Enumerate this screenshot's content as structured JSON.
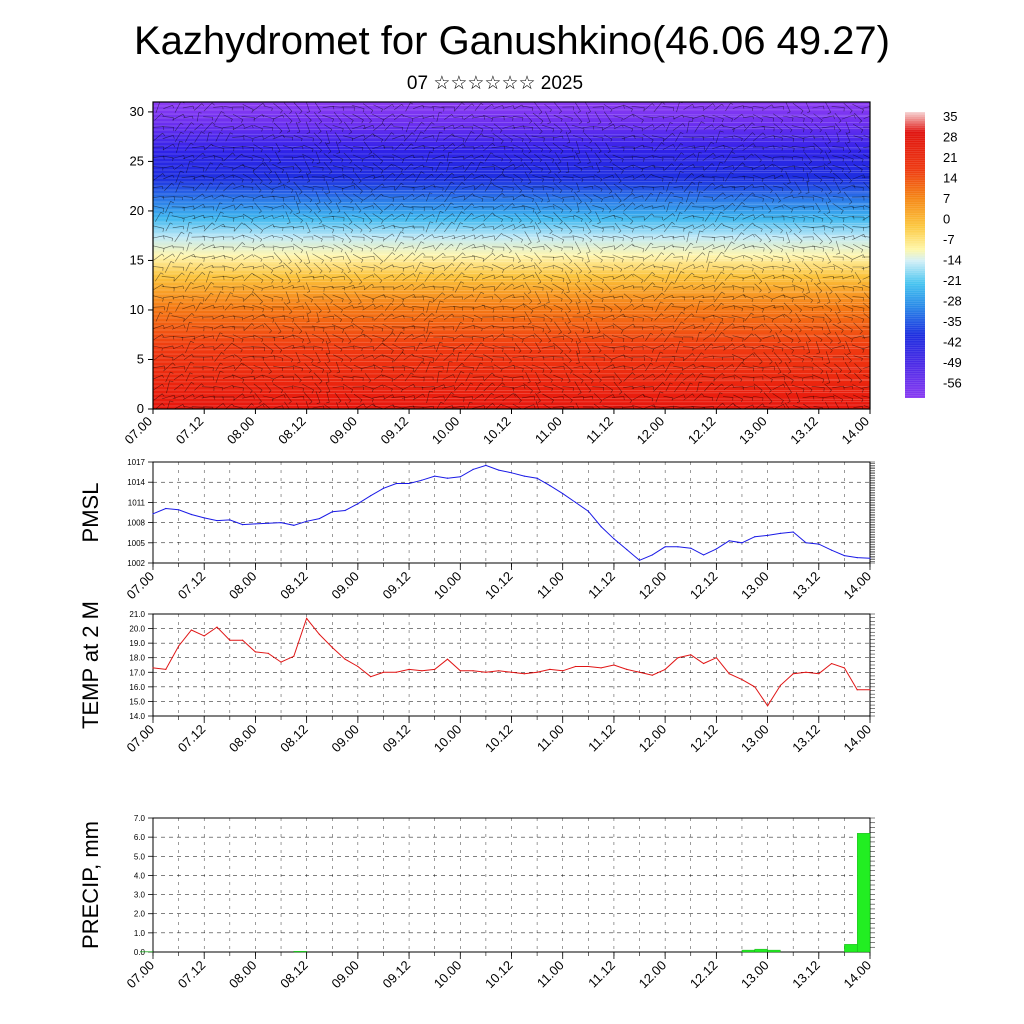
{
  "header": {
    "title": "Kazhydromet for Ganushkino(46.06 49.27)",
    "subtitle": "07 ☆☆☆☆☆☆ 2025"
  },
  "chart_data": [
    {
      "id": "cross-section",
      "type": "heatmap",
      "yticks": [
        "0",
        "5",
        "10",
        "15",
        "20",
        "25",
        "30"
      ],
      "ylim": [
        0,
        31
      ],
      "xticks": [
        "07.00",
        "07.12",
        "08.00",
        "08.12",
        "09.00",
        "09.12",
        "10.00",
        "10.12",
        "11.00",
        "11.12",
        "12.00",
        "12.12",
        "13.00",
        "13.12",
        "14.00"
      ],
      "colorbar_labels": [
        "35",
        "28",
        "21",
        "14",
        "7",
        "0",
        "-7",
        "-14",
        "-21",
        "-28",
        "-35",
        "-42",
        "-49",
        "-56"
      ],
      "colors": {
        "warm": "#e8220f",
        "orange": "#f58a12",
        "yellow": "#fff4a0",
        "cyan": "#49c8f0",
        "blue": "#2020e0",
        "violet": "#7b32ee"
      }
    },
    {
      "id": "pmsl",
      "type": "line",
      "ylabel": "PMSL",
      "ylim": [
        1002,
        1017
      ],
      "yticks": [
        "1017",
        "1014",
        "1011",
        "1008",
        "1005",
        "1002"
      ],
      "xticks": [
        "07.00",
        "07.12",
        "08.00",
        "08.12",
        "09.00",
        "09.12",
        "10.00",
        "10.12",
        "11.00",
        "11.12",
        "12.00",
        "12.12",
        "13.00",
        "13.12",
        "14.00"
      ],
      "x_hours": [
        0,
        3,
        6,
        9,
        12,
        15,
        18,
        21,
        24,
        27,
        30,
        33,
        36,
        39,
        42,
        45,
        48,
        51,
        54,
        57,
        60,
        63,
        66,
        69,
        72,
        75,
        78,
        81,
        84,
        87,
        90,
        93,
        96,
        99,
        102,
        105,
        108,
        111,
        114,
        117,
        120,
        123,
        126,
        129,
        132,
        135,
        138,
        141,
        144,
        147,
        150,
        153,
        156,
        159,
        162,
        165,
        168
      ],
      "values": [
        1009.3,
        1010.1,
        1009.9,
        1009.2,
        1008.7,
        1008.3,
        1008.4,
        1007.7,
        1007.8,
        1007.9,
        1008.0,
        1007.6,
        1008.2,
        1008.6,
        1009.6,
        1009.8,
        1010.8,
        1012.0,
        1013.1,
        1013.8,
        1013.8,
        1014.3,
        1014.9,
        1014.6,
        1014.8,
        1015.9,
        1016.5,
        1015.8,
        1015.4,
        1014.9,
        1014.6,
        1013.5,
        1012.3,
        1011.0,
        1009.7,
        1007.4,
        1005.6,
        1004.0,
        1002.4,
        1003.2,
        1004.4,
        1004.4,
        1004.2,
        1003.2,
        1004.1,
        1005.3,
        1005.0,
        1005.9,
        1006.1,
        1006.4,
        1006.6,
        1005.0,
        1004.8,
        1003.9,
        1003.1,
        1002.8,
        1002.7
      ],
      "color": "#1a1ae6"
    },
    {
      "id": "temp2m",
      "type": "line",
      "ylabel": "TEMP at 2 M",
      "ylim": [
        14.0,
        21.0
      ],
      "yticks": [
        "21.0",
        "20.0",
        "19.0",
        "18.0",
        "17.0",
        "16.0",
        "15.0",
        "14.0"
      ],
      "xticks": [
        "07.00",
        "07.12",
        "08.00",
        "08.12",
        "09.00",
        "09.12",
        "10.00",
        "10.12",
        "11.00",
        "11.12",
        "12.00",
        "12.12",
        "13.00",
        "13.12",
        "14.00"
      ],
      "x_hours": [
        0,
        3,
        6,
        9,
        12,
        15,
        18,
        21,
        24,
        27,
        30,
        33,
        36,
        39,
        42,
        45,
        48,
        51,
        54,
        57,
        60,
        63,
        66,
        69,
        72,
        75,
        78,
        81,
        84,
        87,
        90,
        93,
        96,
        99,
        102,
        105,
        108,
        111,
        114,
        117,
        120,
        123,
        126,
        129,
        132,
        135,
        138,
        141,
        144,
        147,
        150,
        153,
        156,
        159,
        162,
        165,
        168
      ],
      "values": [
        17.3,
        17.2,
        18.8,
        19.9,
        19.5,
        20.1,
        19.2,
        19.2,
        18.4,
        18.3,
        17.7,
        18.1,
        20.7,
        19.6,
        18.7,
        17.9,
        17.4,
        16.7,
        17.0,
        17.0,
        17.2,
        17.1,
        17.2,
        17.9,
        17.1,
        17.1,
        17.0,
        17.1,
        17.0,
        16.9,
        17.0,
        17.2,
        17.1,
        17.4,
        17.4,
        17.3,
        17.5,
        17.2,
        17.0,
        16.8,
        17.2,
        18.0,
        18.2,
        17.6,
        18.0,
        16.9,
        16.5,
        16.0,
        14.7,
        16.1,
        16.9,
        17.0,
        16.9,
        17.6,
        17.3,
        15.8,
        15.8
      ],
      "color": "#e01515"
    },
    {
      "id": "precip",
      "type": "bar",
      "ylabel": "PRECIP, mm",
      "ylim": [
        0.0,
        7.0
      ],
      "yticks": [
        "7.0",
        "6.0",
        "5.0",
        "4.0",
        "3.0",
        "2.0",
        "1.0",
        "0.0"
      ],
      "xticks": [
        "07.00",
        "07.12",
        "08.00",
        "08.12",
        "09.00",
        "09.12",
        "10.00",
        "10.12",
        "11.00",
        "11.12",
        "12.00",
        "12.12",
        "13.00",
        "13.12",
        "14.00"
      ],
      "bars": [
        {
          "hour": 0,
          "value": 0.02
        },
        {
          "hour": 36,
          "value": 0.04
        },
        {
          "hour": 141,
          "value": 0.1
        },
        {
          "hour": 144,
          "value": 0.15
        },
        {
          "hour": 147,
          "value": 0.1
        },
        {
          "hour": 165,
          "value": 0.4
        },
        {
          "hour": 168,
          "value": 6.2
        }
      ],
      "color": "#22ee22"
    }
  ]
}
